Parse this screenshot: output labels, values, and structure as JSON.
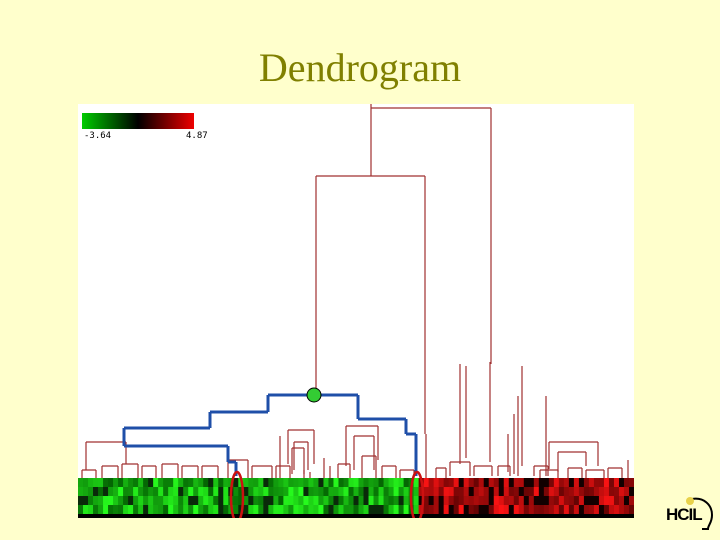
{
  "slide": {
    "title": "Dendrogram"
  },
  "legend": {
    "min_label": "-3.64",
    "max_label": "4.87",
    "colors": [
      "#00cc00",
      "#000000",
      "#ee0000"
    ]
  },
  "colors": {
    "background": "#ffffcc",
    "title": "#808000",
    "tree_line": "#a03030",
    "selected_branch": "#1f4fa8",
    "selected_node": "#33cc33",
    "highlight_oval": "#cc1111"
  },
  "logo": {
    "text": "HCIL"
  }
}
